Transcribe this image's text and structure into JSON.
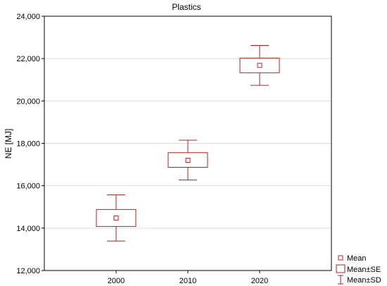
{
  "chart_data": {
    "type": "box",
    "title": "Plastics",
    "xlabel": "",
    "ylabel": "NE [MJ]",
    "ylim": [
      12000,
      24000
    ],
    "y_ticks": [
      "12,000",
      "14,000",
      "16,000",
      "18,000",
      "20,000",
      "22,000",
      "24,000"
    ],
    "y_tick_values": [
      12000,
      14000,
      16000,
      18000,
      20000,
      22000,
      24000
    ],
    "categories": [
      "2000",
      "2010",
      "2020"
    ],
    "series": [
      {
        "category": "2000",
        "mean": 14480,
        "se_low": 14080,
        "se_high": 14880,
        "sd_low": 13390,
        "sd_high": 15570
      },
      {
        "category": "2010",
        "mean": 17200,
        "se_low": 16870,
        "se_high": 17560,
        "sd_low": 16270,
        "sd_high": 18150
      },
      {
        "category": "2020",
        "mean": 21680,
        "se_low": 21330,
        "se_high": 22020,
        "sd_low": 20740,
        "sd_high": 22620
      }
    ],
    "grid": true,
    "legend_position": "bottom-right",
    "legend": [
      "Mean",
      "Mean±SE",
      "Mean±SD"
    ],
    "color": "#b22222"
  }
}
